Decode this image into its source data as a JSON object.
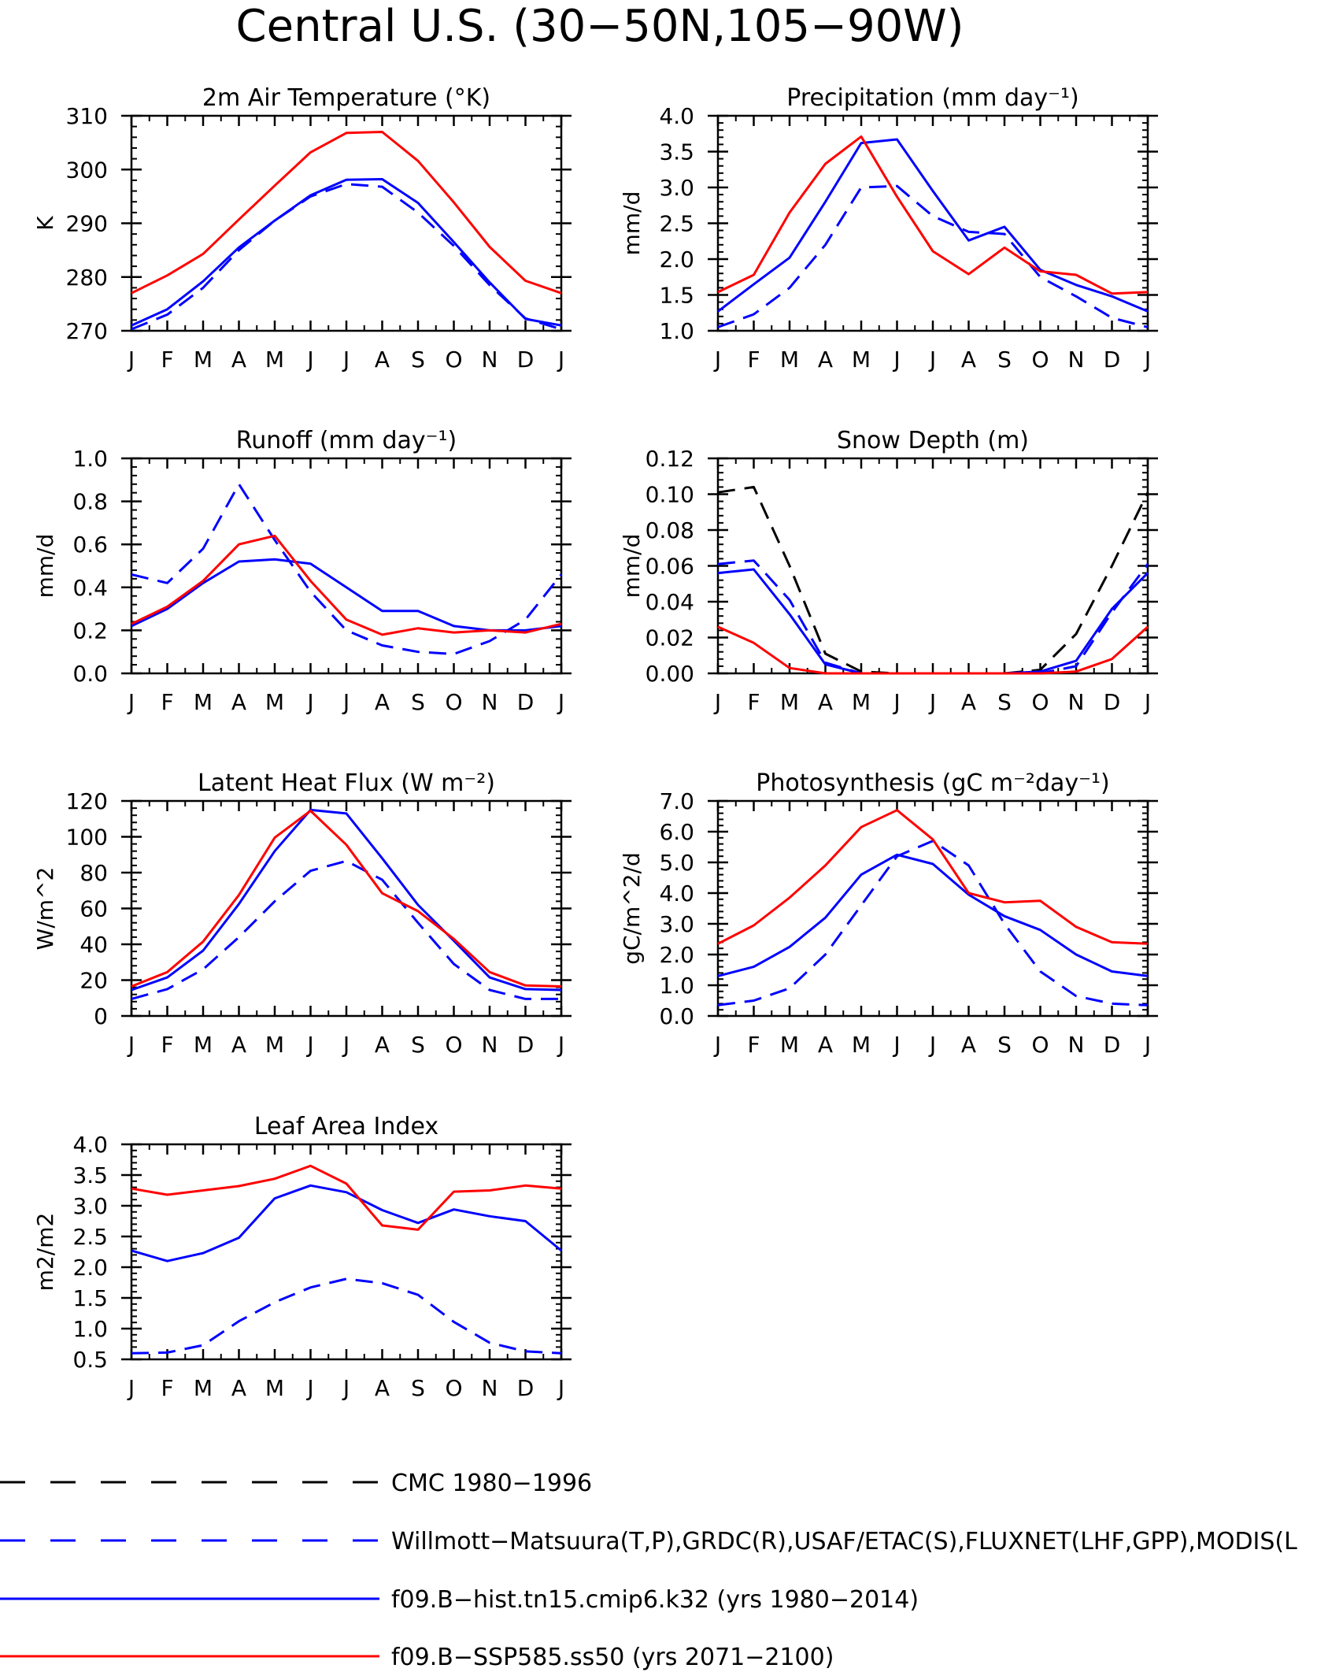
{
  "figure": {
    "title": "Central U.S. (30−50N,105−90W)"
  },
  "colors": {
    "obs_snow": "#000000",
    "obs": "#0000ff",
    "hist": "#0000ff",
    "ssp": "#ff0000",
    "axes": "#000000",
    "background": "#ffffff"
  },
  "months": [
    "J",
    "F",
    "M",
    "A",
    "M",
    "J",
    "J",
    "A",
    "S",
    "O",
    "N",
    "D",
    "J"
  ],
  "chart_data": [
    {
      "id": "t2m",
      "type": "line",
      "title": "2m Air Temperature (°K)",
      "ylabel": "K",
      "ylim": [
        270,
        310
      ],
      "yticks": [
        "270",
        "280",
        "290",
        "300",
        "310"
      ],
      "yticks_values": [
        270,
        280,
        290,
        300,
        310
      ],
      "minor_step": 2,
      "series": [
        {
          "role": "obs",
          "style": "dashed",
          "values": [
            270.3,
            273.0,
            278.0,
            285.0,
            290.5,
            295.0,
            297.3,
            296.8,
            292.0,
            285.8,
            278.5,
            272.3,
            270.3
          ]
        },
        {
          "role": "hist",
          "style": "solid",
          "values": [
            271.0,
            274.0,
            279.2,
            285.5,
            290.5,
            295.2,
            298.1,
            298.2,
            293.8,
            286.5,
            279.0,
            272.2,
            271.0
          ]
        },
        {
          "role": "ssp",
          "style": "solid",
          "values": [
            277.0,
            280.3,
            284.3,
            290.7,
            297.0,
            303.2,
            306.8,
            307.0,
            301.6,
            293.9,
            285.6,
            279.3,
            277.0
          ]
        }
      ]
    },
    {
      "id": "precip",
      "type": "line",
      "title": "Precipitation (mm day⁻¹)",
      "ylabel": "mm/d",
      "ylim": [
        1.0,
        4.0
      ],
      "yticks": [
        "1.0",
        "1.5",
        "2.0",
        "2.5",
        "3.0",
        "3.5",
        "4.0"
      ],
      "yticks_values": [
        1.0,
        1.5,
        2.0,
        2.5,
        3.0,
        3.5,
        4.0
      ],
      "minor_step": 0.1,
      "series": [
        {
          "role": "obs",
          "style": "dashed",
          "values": [
            1.05,
            1.23,
            1.6,
            2.2,
            3.0,
            3.02,
            2.6,
            2.38,
            2.35,
            1.75,
            1.48,
            1.18,
            1.05
          ]
        },
        {
          "role": "hist",
          "style": "solid",
          "values": [
            1.27,
            1.65,
            2.02,
            2.8,
            3.62,
            3.67,
            2.95,
            2.26,
            2.45,
            1.85,
            1.64,
            1.48,
            1.27
          ]
        },
        {
          "role": "ssp",
          "style": "solid",
          "values": [
            1.54,
            1.78,
            2.65,
            3.33,
            3.71,
            2.87,
            2.11,
            1.79,
            2.16,
            1.83,
            1.78,
            1.52,
            1.54
          ]
        }
      ]
    },
    {
      "id": "runoff",
      "type": "line",
      "title": "Runoff (mm day⁻¹)",
      "ylabel": "mm/d",
      "ylim": [
        0.0,
        1.0
      ],
      "yticks": [
        "0.0",
        "0.2",
        "0.4",
        "0.6",
        "0.8",
        "1.0"
      ],
      "yticks_values": [
        0.0,
        0.2,
        0.4,
        0.6,
        0.8,
        1.0
      ],
      "minor_step": 0.04,
      "series": [
        {
          "role": "obs",
          "style": "dashed",
          "values": [
            0.46,
            0.42,
            0.58,
            0.88,
            0.62,
            0.38,
            0.2,
            0.13,
            0.1,
            0.09,
            0.15,
            0.25,
            0.46
          ]
        },
        {
          "role": "hist",
          "style": "solid",
          "values": [
            0.22,
            0.3,
            0.42,
            0.52,
            0.53,
            0.51,
            0.4,
            0.29,
            0.29,
            0.22,
            0.2,
            0.2,
            0.22
          ]
        },
        {
          "role": "ssp",
          "style": "solid",
          "values": [
            0.23,
            0.31,
            0.43,
            0.6,
            0.64,
            0.43,
            0.25,
            0.18,
            0.21,
            0.19,
            0.2,
            0.19,
            0.23
          ]
        }
      ]
    },
    {
      "id": "snow",
      "type": "line",
      "title": "Snow Depth (m)",
      "ylabel": "mm/d",
      "ylim": [
        0.0,
        0.12
      ],
      "yticks": [
        "0.00",
        "0.02",
        "0.04",
        "0.06",
        "0.08",
        "0.10",
        "0.12"
      ],
      "yticks_values": [
        0.0,
        0.02,
        0.04,
        0.06,
        0.08,
        0.1,
        0.12
      ],
      "minor_step": 0.004,
      "series": [
        {
          "role": "obs_snow",
          "style": "dashed",
          "values": [
            0.101,
            0.104,
            0.06,
            0.011,
            0.001,
            0.0,
            0.0,
            0.0,
            0.0,
            0.002,
            0.022,
            0.06,
            0.101
          ]
        },
        {
          "role": "obs",
          "style": "dashed",
          "values": [
            0.061,
            0.063,
            0.041,
            0.006,
            0.0,
            0.0,
            0.0,
            0.0,
            0.0,
            0.0,
            0.004,
            0.034,
            0.061
          ]
        },
        {
          "role": "hist",
          "style": "solid",
          "values": [
            0.056,
            0.058,
            0.033,
            0.005,
            0.0,
            0.0,
            0.0,
            0.0,
            0.0,
            0.001,
            0.007,
            0.036,
            0.056
          ]
        },
        {
          "role": "ssp",
          "style": "solid",
          "values": [
            0.026,
            0.017,
            0.003,
            0.0,
            0.0,
            0.0,
            0.0,
            0.0,
            0.0,
            0.0,
            0.001,
            0.008,
            0.026
          ]
        }
      ]
    },
    {
      "id": "lhf",
      "type": "line",
      "title": "Latent Heat Flux (W m⁻²)",
      "ylabel": "W/m^2",
      "ylim": [
        0,
        120
      ],
      "yticks": [
        "0",
        "20",
        "40",
        "60",
        "80",
        "100",
        "120"
      ],
      "yticks_values": [
        0,
        20,
        40,
        60,
        80,
        100,
        120
      ],
      "minor_step": 4,
      "series": [
        {
          "role": "obs",
          "style": "dashed",
          "values": [
            9.5,
            15.0,
            26.0,
            44.0,
            64.0,
            81.0,
            86.5,
            76.0,
            52.0,
            29.0,
            14.5,
            9.5,
            9.5
          ]
        },
        {
          "role": "hist",
          "style": "solid",
          "values": [
            14.5,
            21.5,
            36.5,
            62.5,
            92.0,
            115.0,
            113.0,
            88.0,
            62.0,
            42.0,
            21.5,
            15.0,
            14.5
          ]
        },
        {
          "role": "ssp",
          "style": "solid",
          "values": [
            16.5,
            24.5,
            41.5,
            67.5,
            99.5,
            114.5,
            95.5,
            68.5,
            58.5,
            43.0,
            24.5,
            17.0,
            16.5
          ]
        }
      ]
    },
    {
      "id": "gpp",
      "type": "line",
      "title": "Photosynthesis (gC m⁻²day⁻¹)",
      "ylabel": "gC/m^2/d",
      "ylim": [
        0.0,
        7.0
      ],
      "yticks": [
        "0.0",
        "1.0",
        "2.0",
        "3.0",
        "4.0",
        "5.0",
        "6.0",
        "7.0"
      ],
      "yticks_values": [
        0,
        1,
        2,
        3,
        4,
        5,
        6,
        7
      ],
      "minor_step": 0.2,
      "series": [
        {
          "role": "obs",
          "style": "dashed",
          "values": [
            0.35,
            0.5,
            0.9,
            2.0,
            3.6,
            5.2,
            5.7,
            4.9,
            3.0,
            1.45,
            0.65,
            0.4,
            0.35
          ]
        },
        {
          "role": "hist",
          "style": "solid",
          "values": [
            1.3,
            1.6,
            2.25,
            3.2,
            4.6,
            5.25,
            4.95,
            3.95,
            3.25,
            2.8,
            2.0,
            1.45,
            1.3
          ]
        },
        {
          "role": "ssp",
          "style": "solid",
          "values": [
            2.35,
            2.95,
            3.85,
            4.9,
            6.15,
            6.7,
            5.75,
            4.0,
            3.7,
            3.75,
            2.9,
            2.4,
            2.35
          ]
        }
      ]
    },
    {
      "id": "lai",
      "type": "line",
      "title": "Leaf Area Index",
      "ylabel": "m2/m2",
      "ylim": [
        0.5,
        4.0
      ],
      "yticks": [
        "0.5",
        "1.0",
        "1.5",
        "2.0",
        "2.5",
        "3.0",
        "3.5",
        "4.0"
      ],
      "yticks_values": [
        0.5,
        1.0,
        1.5,
        2.0,
        2.5,
        3.0,
        3.5,
        4.0
      ],
      "minor_step": 0.1,
      "series": [
        {
          "role": "obs",
          "style": "dashed",
          "values": [
            0.6,
            0.61,
            0.73,
            1.12,
            1.43,
            1.67,
            1.81,
            1.74,
            1.55,
            1.11,
            0.77,
            0.63,
            0.6
          ]
        },
        {
          "role": "hist",
          "style": "solid",
          "values": [
            2.27,
            2.1,
            2.23,
            2.48,
            3.12,
            3.33,
            3.22,
            2.93,
            2.72,
            2.94,
            2.83,
            2.75,
            2.27
          ]
        },
        {
          "role": "ssp",
          "style": "solid",
          "values": [
            3.28,
            3.18,
            3.25,
            3.32,
            3.44,
            3.65,
            3.36,
            2.68,
            2.61,
            3.23,
            3.25,
            3.33,
            3.28
          ]
        }
      ]
    }
  ],
  "legend": [
    {
      "role": "obs_snow",
      "style": "dashed",
      "label": "CMC 1980−1996"
    },
    {
      "role": "obs",
      "style": "dashed",
      "label": "Willmott−Matsuura(T,P),GRDC(R),USAF/ETAC(S),FLUXNET(LHF,GPP),MODIS(L"
    },
    {
      "role": "hist",
      "style": "solid",
      "label": "f09.B−hist.tn15.cmip6.k32 (yrs 1980−2014)"
    },
    {
      "role": "ssp",
      "style": "solid",
      "label": "f09.B−SSP585.ss50 (yrs 2071−2100)"
    }
  ]
}
